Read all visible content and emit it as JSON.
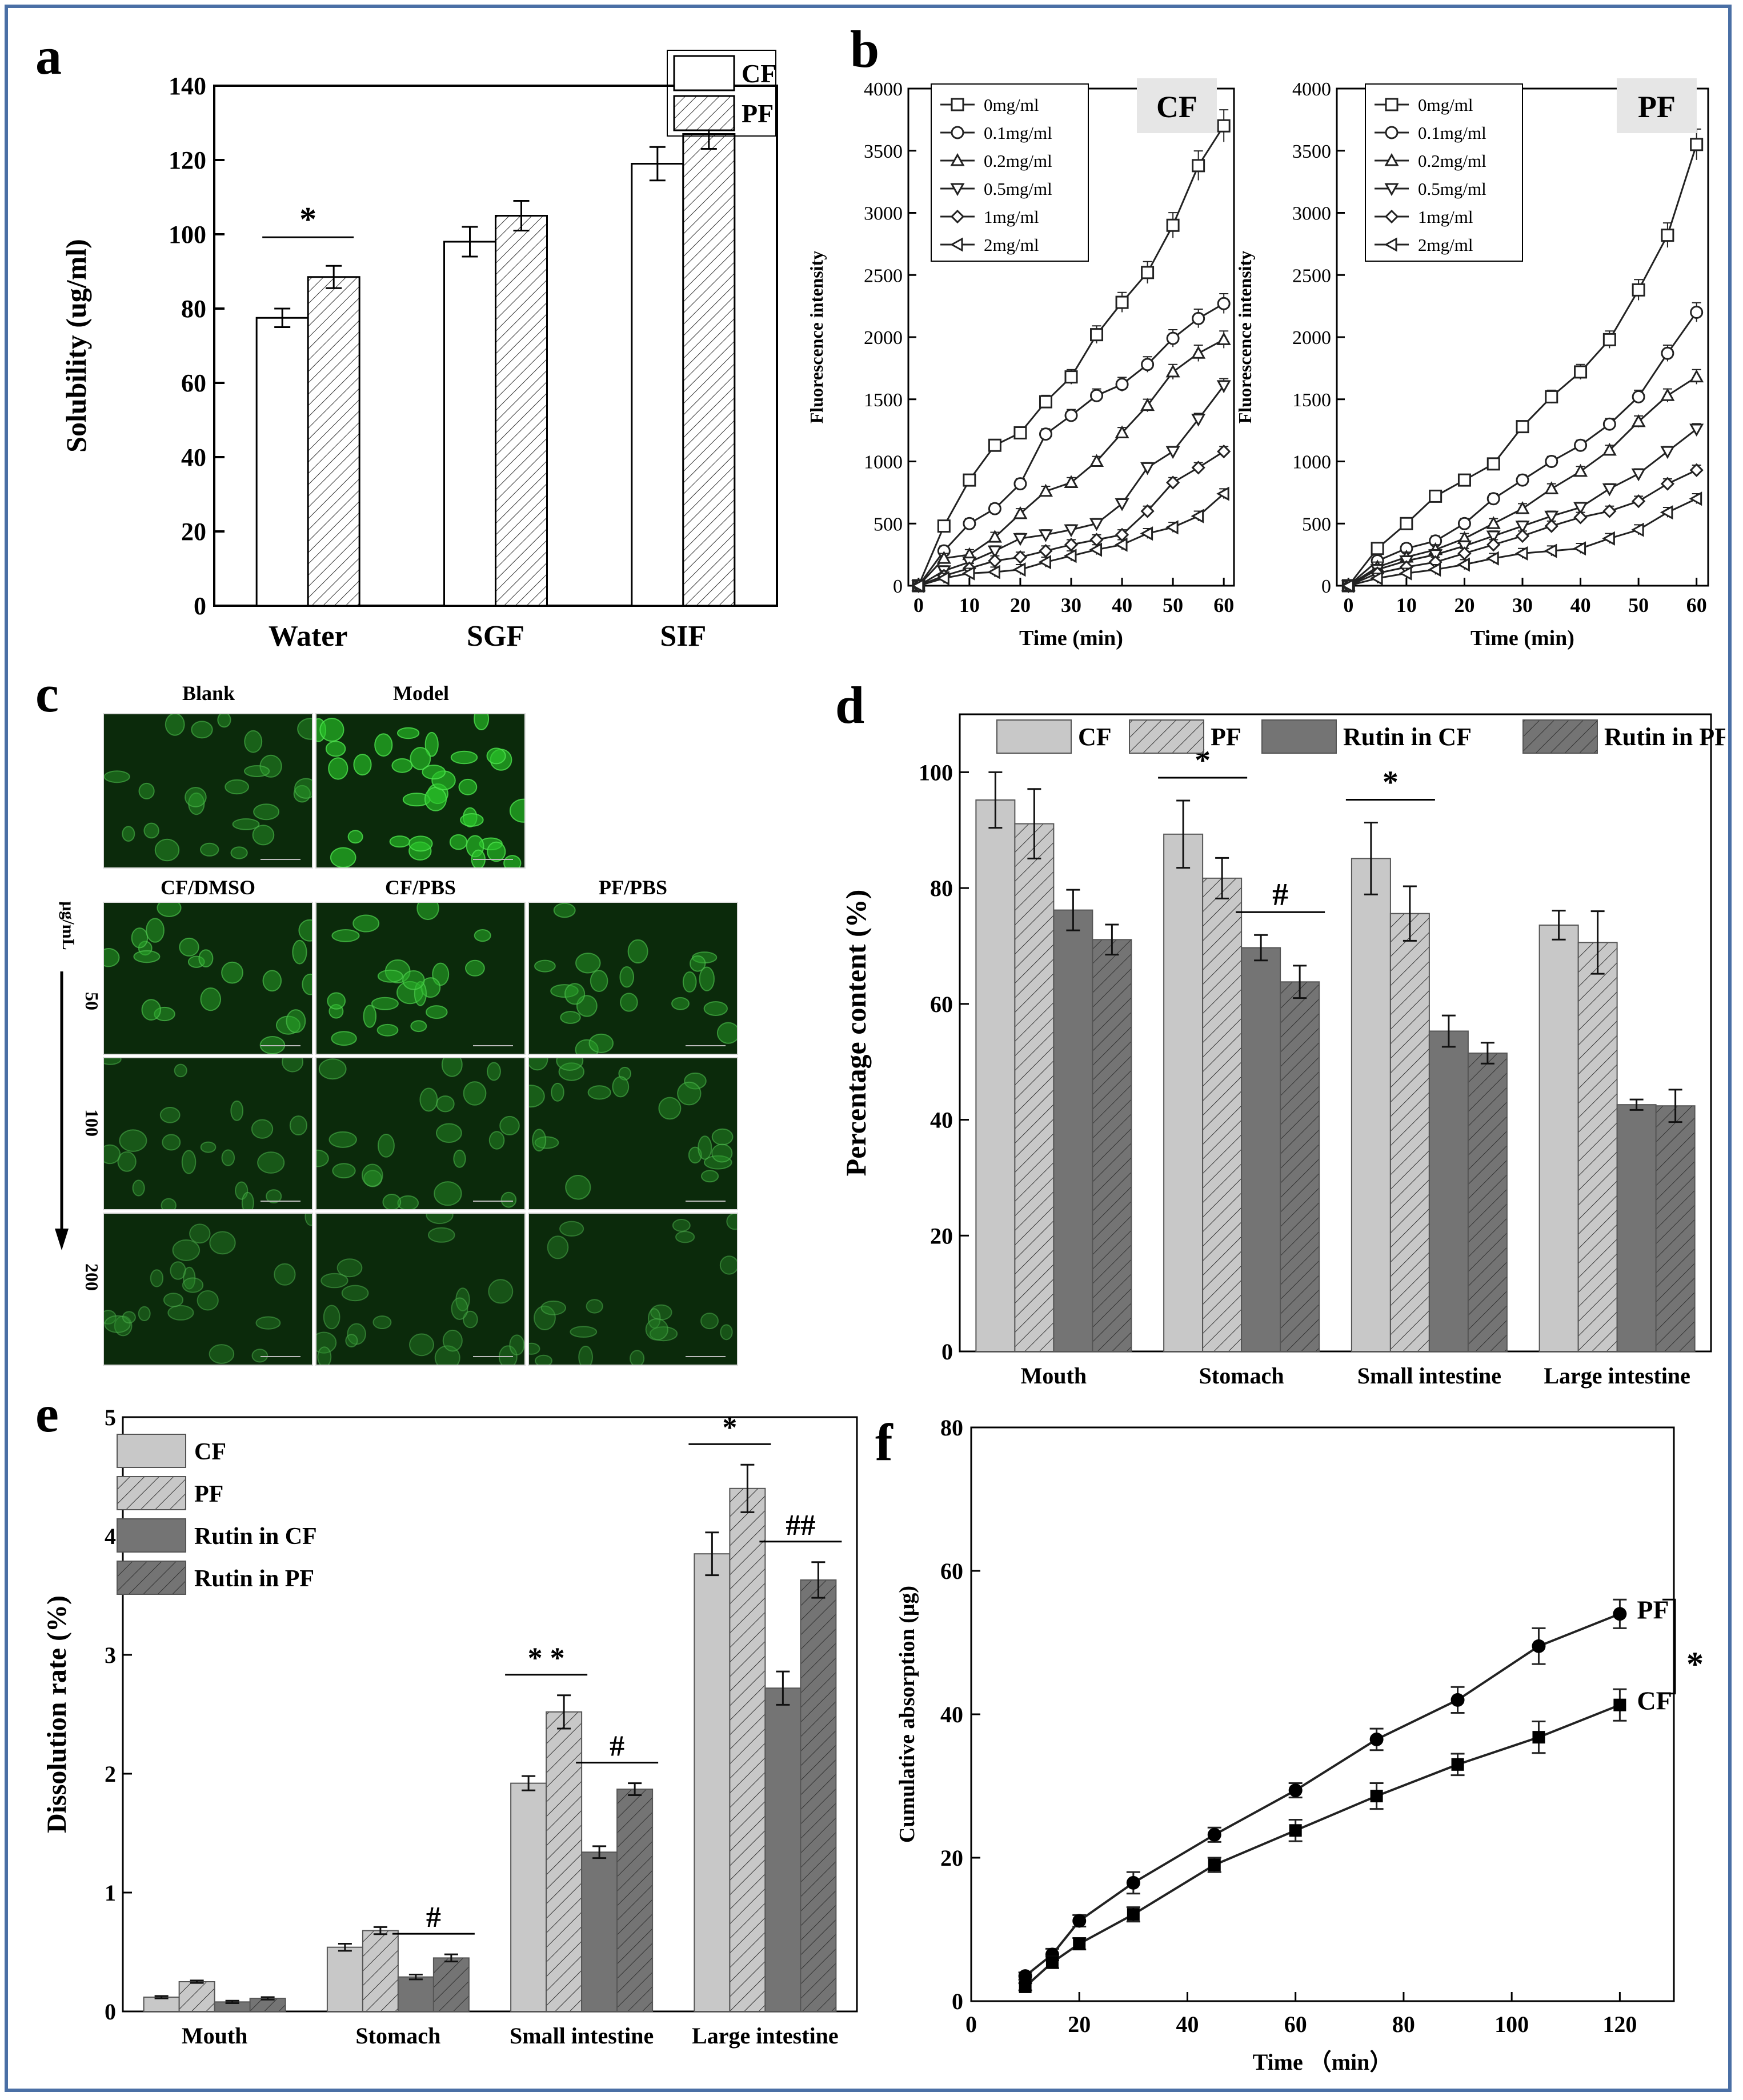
{
  "panels": {
    "a": "a",
    "b": "b",
    "c": "c",
    "d": "d",
    "e": "e",
    "f": "f"
  },
  "chart_data": [
    {
      "id": "a",
      "type": "bar",
      "ylabel": "Solubility (ug/ml)",
      "ylim": [
        0,
        140
      ],
      "yticks": [
        0,
        20,
        40,
        60,
        80,
        100,
        120,
        140
      ],
      "categories": [
        "Water",
        "SGF",
        "SIF"
      ],
      "series": [
        {
          "name": "CF",
          "values": [
            77.5,
            98,
            119
          ],
          "errors": [
            2.5,
            4,
            4.5
          ],
          "pattern": "plain"
        },
        {
          "name": "PF",
          "values": [
            88.5,
            105,
            127
          ],
          "errors": [
            3,
            4,
            4
          ],
          "pattern": "hatch"
        }
      ],
      "annotations": [
        {
          "text": "*",
          "category": 0
        }
      ]
    },
    {
      "id": "b_cf",
      "type": "line",
      "title": "CF",
      "xlabel": "Time (min)",
      "ylabel": "Fluorescence intensity",
      "xlim": [
        -2,
        62
      ],
      "ylim": [
        0,
        4000
      ],
      "xticks": [
        0,
        10,
        20,
        30,
        40,
        50,
        60
      ],
      "yticks": [
        0,
        500,
        1000,
        1500,
        2000,
        2500,
        3000,
        3500,
        4000
      ],
      "x": [
        0,
        5,
        10,
        15,
        20,
        25,
        30,
        35,
        40,
        45,
        50,
        55,
        60
      ],
      "series": [
        {
          "name": "0mg/ml",
          "marker": "square",
          "values": [
            0,
            480,
            850,
            1130,
            1230,
            1480,
            1680,
            2020,
            2280,
            2520,
            2900,
            3380,
            3700
          ]
        },
        {
          "name": "0.1mg/ml",
          "marker": "circle",
          "values": [
            0,
            280,
            500,
            620,
            820,
            1220,
            1370,
            1530,
            1620,
            1780,
            1990,
            2150,
            2270
          ]
        },
        {
          "name": "0.2mg/ml",
          "marker": "triangle-up",
          "values": [
            0,
            220,
            250,
            390,
            580,
            760,
            830,
            1000,
            1230,
            1450,
            1720,
            1870,
            1980
          ]
        },
        {
          "name": "0.5mg/ml",
          "marker": "triangle-down",
          "values": [
            0,
            120,
            190,
            280,
            380,
            410,
            450,
            500,
            660,
            950,
            1080,
            1340,
            1610
          ]
        },
        {
          "name": "1mg/ml",
          "marker": "diamond",
          "values": [
            0,
            80,
            140,
            200,
            230,
            280,
            330,
            370,
            410,
            600,
            830,
            950,
            1080
          ]
        },
        {
          "name": "2mg/ml",
          "marker": "triangle-left",
          "values": [
            0,
            60,
            100,
            110,
            130,
            190,
            240,
            290,
            330,
            420,
            470,
            560,
            740
          ]
        }
      ]
    },
    {
      "id": "b_pf",
      "type": "line",
      "title": "PF",
      "xlabel": "Time (min)",
      "ylabel": "Fluorescence intensity",
      "xlim": [
        -2,
        62
      ],
      "ylim": [
        0,
        4000
      ],
      "xticks": [
        0,
        10,
        20,
        30,
        40,
        50,
        60
      ],
      "yticks": [
        0,
        500,
        1000,
        1500,
        2000,
        2500,
        3000,
        3500,
        4000
      ],
      "x": [
        0,
        5,
        10,
        15,
        20,
        25,
        30,
        35,
        40,
        45,
        50,
        55,
        60
      ],
      "series": [
        {
          "name": "0mg/ml",
          "marker": "square",
          "values": [
            0,
            300,
            500,
            720,
            850,
            980,
            1280,
            1520,
            1720,
            1980,
            2380,
            2820,
            3550
          ]
        },
        {
          "name": "0.1mg/ml",
          "marker": "circle",
          "values": [
            0,
            200,
            300,
            360,
            500,
            700,
            850,
            1000,
            1130,
            1300,
            1520,
            1870,
            2200
          ]
        },
        {
          "name": "0.2mg/ml",
          "marker": "triangle-up",
          "values": [
            0,
            150,
            230,
            290,
            380,
            500,
            620,
            780,
            920,
            1090,
            1320,
            1530,
            1680
          ]
        },
        {
          "name": "0.5mg/ml",
          "marker": "triangle-down",
          "values": [
            0,
            130,
            200,
            250,
            320,
            400,
            480,
            560,
            630,
            780,
            900,
            1080,
            1260
          ]
        },
        {
          "name": "1mg/ml",
          "marker": "diamond",
          "values": [
            0,
            100,
            150,
            190,
            260,
            330,
            400,
            480,
            550,
            600,
            680,
            820,
            930
          ]
        },
        {
          "name": "2mg/ml",
          "marker": "triangle-left",
          "values": [
            0,
            60,
            100,
            130,
            170,
            220,
            260,
            280,
            300,
            380,
            450,
            590,
            700
          ]
        }
      ]
    },
    {
      "id": "d",
      "type": "bar",
      "ylabel": "Percentage content (%)",
      "ylim": [
        0,
        110
      ],
      "yticks": [
        0,
        20,
        40,
        60,
        80,
        100
      ],
      "categories": [
        "Mouth",
        "Stomach",
        "Small intestine",
        "Large intestine"
      ],
      "series": [
        {
          "name": "CF",
          "values": [
            95.2,
            89.3,
            85.1,
            73.6
          ],
          "errors": [
            4.8,
            5.8,
            6.2,
            2.5
          ],
          "color": "#c8c8c8",
          "hatch": false
        },
        {
          "name": "PF",
          "values": [
            91.1,
            81.7,
            75.6,
            70.6
          ],
          "errors": [
            6,
            3.5,
            4.7,
            5.4
          ],
          "color": "#c8c8c8",
          "hatch": true
        },
        {
          "name": "Rutin in CF",
          "values": [
            76.2,
            69.7,
            55.3,
            42.6
          ],
          "errors": [
            3.5,
            2.2,
            2.7,
            0.9
          ],
          "color": "#747474",
          "hatch": false
        },
        {
          "name": "Rutin in PF",
          "values": [
            71.1,
            63.8,
            51.5,
            42.4
          ],
          "errors": [
            2.6,
            2.8,
            1.8,
            2.8
          ],
          "color": "#747474",
          "hatch": true
        }
      ],
      "annotations": [
        {
          "text": "*",
          "category": 1,
          "bars": [
            0,
            1
          ]
        },
        {
          "text": "#",
          "category": 1,
          "bars": [
            2,
            3
          ]
        },
        {
          "text": "*",
          "category": 2,
          "bars": [
            0,
            1
          ]
        }
      ]
    },
    {
      "id": "e",
      "type": "bar",
      "ylabel": "Dissolution rate (%)",
      "ylim": [
        0,
        5
      ],
      "yticks": [
        0,
        1,
        2,
        3,
        4,
        5
      ],
      "categories": [
        "Mouth",
        "Stomach",
        "Small intestine",
        "Large intestine"
      ],
      "series": [
        {
          "name": "CF",
          "values": [
            0.12,
            0.54,
            1.92,
            3.85
          ],
          "errors": [
            0.01,
            0.03,
            0.06,
            0.18
          ],
          "color": "#c8c8c8",
          "hatch": false
        },
        {
          "name": "PF",
          "values": [
            0.25,
            0.68,
            2.52,
            4.4
          ],
          "errors": [
            0.01,
            0.03,
            0.14,
            0.2
          ],
          "color": "#c8c8c8",
          "hatch": true
        },
        {
          "name": "Rutin in CF",
          "values": [
            0.08,
            0.29,
            1.34,
            2.72
          ],
          "errors": [
            0.01,
            0.02,
            0.05,
            0.14
          ],
          "color": "#747474",
          "hatch": false
        },
        {
          "name": "Rutin in PF",
          "values": [
            0.11,
            0.45,
            1.87,
            3.63
          ],
          "errors": [
            0.01,
            0.03,
            0.05,
            0.15
          ],
          "color": "#747474",
          "hatch": true
        }
      ],
      "annotations": [
        {
          "text": "#",
          "category": 1,
          "bars": [
            2,
            3
          ]
        },
        {
          "text": "* *",
          "category": 2,
          "bars": [
            0,
            1
          ]
        },
        {
          "text": "#",
          "category": 2,
          "bars": [
            2,
            3
          ]
        },
        {
          "text": "*",
          "category": 3,
          "bars": [
            0,
            1
          ]
        },
        {
          "text": "##",
          "category": 3,
          "bars": [
            2,
            3
          ]
        }
      ]
    },
    {
      "id": "f",
      "type": "line",
      "xlabel": "Time （min）",
      "ylabel": "Cumulative absorption (μg)",
      "xlim": [
        0,
        130
      ],
      "ylim": [
        0,
        80
      ],
      "xticks": [
        0,
        20,
        40,
        60,
        80,
        100,
        120
      ],
      "yticks": [
        0,
        20,
        40,
        60,
        80
      ],
      "x": [
        10,
        15,
        20,
        30,
        45,
        60,
        75,
        90,
        105,
        120
      ],
      "series": [
        {
          "name": "PF",
          "marker": "circle",
          "values": [
            3.5,
            6.5,
            11.2,
            16.5,
            23.2,
            29.4,
            36.5,
            42,
            49.5,
            54
          ],
          "errors": [
            0.5,
            0.8,
            0.8,
            1.5,
            1,
            1,
            1.5,
            1.8,
            2.5,
            2
          ]
        },
        {
          "name": "CF",
          "marker": "square",
          "values": [
            2,
            5.4,
            8,
            12.1,
            19,
            23.8,
            28.6,
            33,
            36.8,
            41.3
          ],
          "errors": [
            0.5,
            0.8,
            0.8,
            1,
            1,
            1.5,
            1.8,
            1.5,
            2.2,
            2.2
          ]
        }
      ],
      "annotations": [
        {
          "text": "*",
          "between": [
            "PF",
            "CF"
          ]
        }
      ]
    }
  ],
  "micrographs": {
    "top_labels": [
      "Blank",
      "Model"
    ],
    "col_labels": [
      "CF/DMSO",
      "CF/PBS",
      "PF/PBS"
    ],
    "unit": "μg/mL",
    "row_labels": [
      "50",
      "100",
      "200"
    ]
  }
}
